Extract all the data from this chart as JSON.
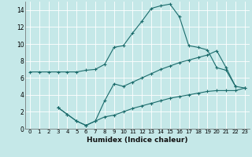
{
  "title": "",
  "xlabel": "Humidex (Indice chaleur)",
  "bg_color": "#c5e8e8",
  "line_color": "#1a6b6b",
  "grid_color": "#ffffff",
  "xlim": [
    -0.5,
    23.5
  ],
  "ylim": [
    0,
    15
  ],
  "xticks": [
    0,
    1,
    2,
    3,
    4,
    5,
    6,
    7,
    8,
    9,
    10,
    11,
    12,
    13,
    14,
    15,
    16,
    17,
    18,
    19,
    20,
    21,
    22,
    23
  ],
  "yticks": [
    0,
    2,
    4,
    6,
    8,
    10,
    12,
    14
  ],
  "line1_x": [
    0,
    1,
    2,
    3,
    4,
    5,
    6,
    7,
    8,
    9,
    10,
    11,
    12,
    13,
    14,
    15,
    16,
    17,
    18,
    19,
    20,
    21,
    22
  ],
  "line1_y": [
    6.7,
    6.7,
    6.7,
    6.7,
    6.7,
    6.7,
    6.9,
    7.0,
    7.6,
    9.6,
    9.8,
    11.3,
    12.7,
    14.2,
    14.5,
    14.7,
    13.2,
    9.8,
    9.6,
    9.3,
    7.2,
    6.9,
    5.0
  ],
  "line2_x": [
    3,
    4,
    5,
    6,
    7,
    8,
    9,
    10,
    11,
    12,
    13,
    14,
    15,
    16,
    17,
    18,
    19,
    20,
    21,
    22,
    23
  ],
  "line2_y": [
    2.5,
    1.7,
    0.9,
    0.4,
    0.9,
    3.3,
    5.3,
    5.0,
    5.5,
    6.0,
    6.5,
    7.0,
    7.4,
    7.8,
    8.1,
    8.4,
    8.7,
    9.2,
    7.2,
    5.0,
    4.8
  ],
  "line3_x": [
    3,
    4,
    5,
    6,
    7,
    8,
    9,
    10,
    11,
    12,
    13,
    14,
    15,
    16,
    17,
    18,
    19,
    20,
    21,
    22,
    23
  ],
  "line3_y": [
    2.5,
    1.7,
    0.9,
    0.4,
    0.9,
    1.4,
    1.6,
    2.0,
    2.4,
    2.7,
    3.0,
    3.3,
    3.6,
    3.8,
    4.0,
    4.2,
    4.4,
    4.5,
    4.5,
    4.5,
    4.8
  ]
}
